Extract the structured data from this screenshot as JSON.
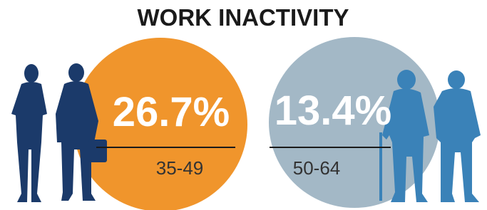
{
  "title": "WORK INACTIVITY",
  "groups": [
    {
      "value": "26.7%",
      "label": "35-49"
    },
    {
      "value": "13.4%",
      "label": "50-64"
    }
  ]
}
